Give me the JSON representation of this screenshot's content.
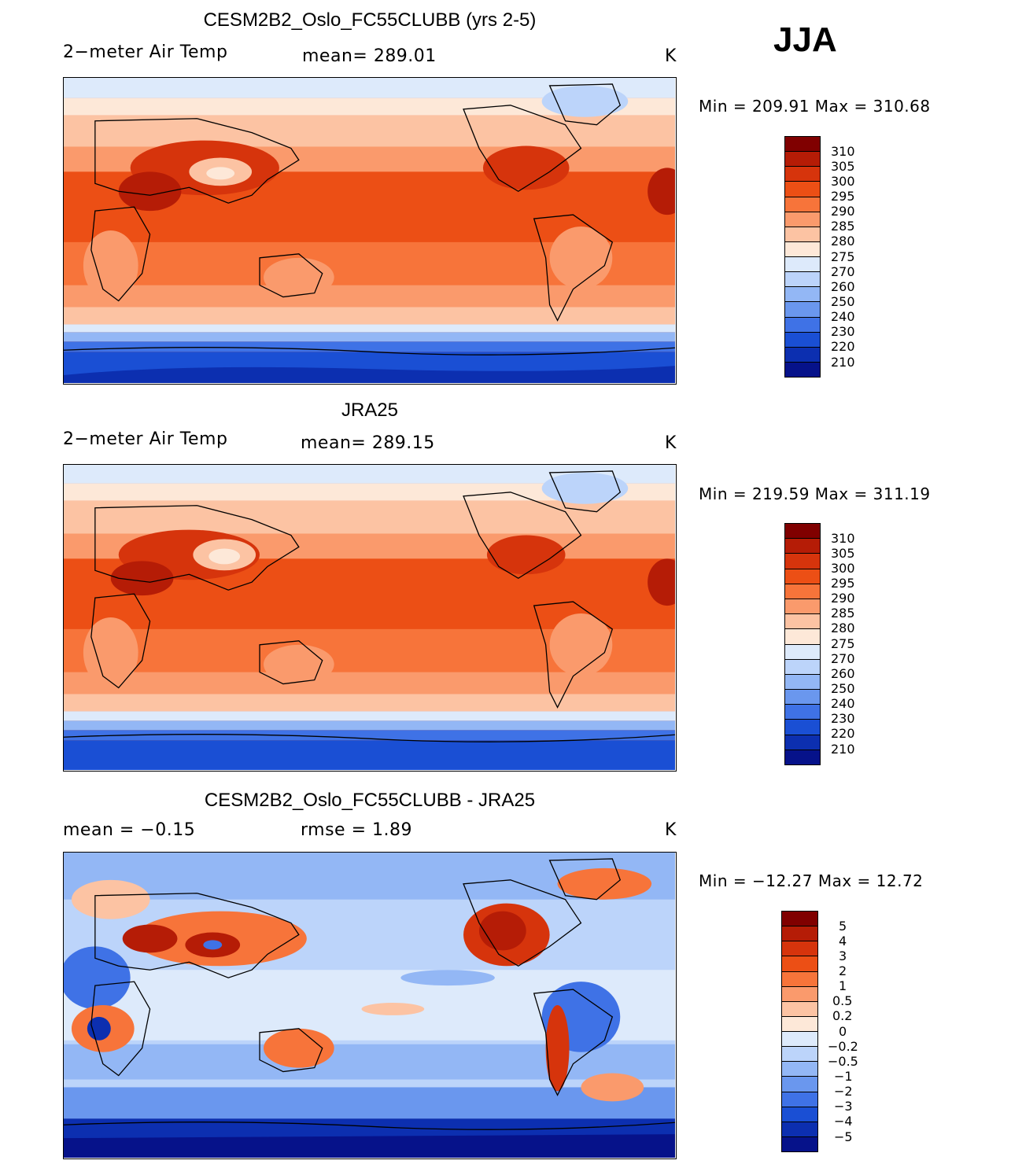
{
  "season": "JJA",
  "panels": [
    {
      "title": "CESM2B2_Oslo_FC55CLUBB (yrs 2-5)",
      "left": "2−meter Air Temp",
      "center": "mean= 289.01",
      "units": "K",
      "minmax": "Min = 209.91 Max = 310.68",
      "colorbar_labels": [
        "310",
        "305",
        "300",
        "295",
        "290",
        "285",
        "280",
        "275",
        "270",
        "260",
        "250",
        "240",
        "230",
        "220",
        "210"
      ]
    },
    {
      "title": "JRA25",
      "left": "2−meter Air Temp",
      "center": "mean= 289.15",
      "units": "K",
      "minmax": "Min = 219.59 Max = 311.19",
      "colorbar_labels": [
        "310",
        "305",
        "300",
        "295",
        "290",
        "285",
        "280",
        "275",
        "270",
        "260",
        "250",
        "240",
        "230",
        "220",
        "210"
      ]
    },
    {
      "title": "CESM2B2_Oslo_FC55CLUBB - JRA25",
      "left": "mean =   −0.15",
      "center": "rmse =    1.89",
      "units": "K",
      "minmax": "Min = −12.27 Max =   12.72",
      "colorbar_labels": [
        "5",
        "4",
        "3",
        "2",
        "1",
        "0.5",
        "0.2",
        "0",
        "−0.2",
        "−0.5",
        "−1",
        "−2",
        "−3",
        "−4",
        "−5"
      ]
    }
  ],
  "colors": {
    "abs_scale": [
      "#800000",
      "#b51c06",
      "#d6340c",
      "#ec4f15",
      "#f7743a",
      "#fa9a6c",
      "#fcc3a3",
      "#fde8d8",
      "#ddeafb",
      "#bcd4fa",
      "#93b7f5",
      "#6a97ee",
      "#3f72e6",
      "#1a4fd4",
      "#0c2fb0",
      "#06128a"
    ],
    "diff_scale": [
      "#800000",
      "#b51c06",
      "#d6340c",
      "#ec4f15",
      "#f7743a",
      "#fa9a6c",
      "#fcc3a3",
      "#fde8d8",
      "#ddeafb",
      "#bcd4fa",
      "#93b7f5",
      "#6a97ee",
      "#3f72e6",
      "#1a4fd4",
      "#0c2fb0",
      "#06128a"
    ]
  }
}
